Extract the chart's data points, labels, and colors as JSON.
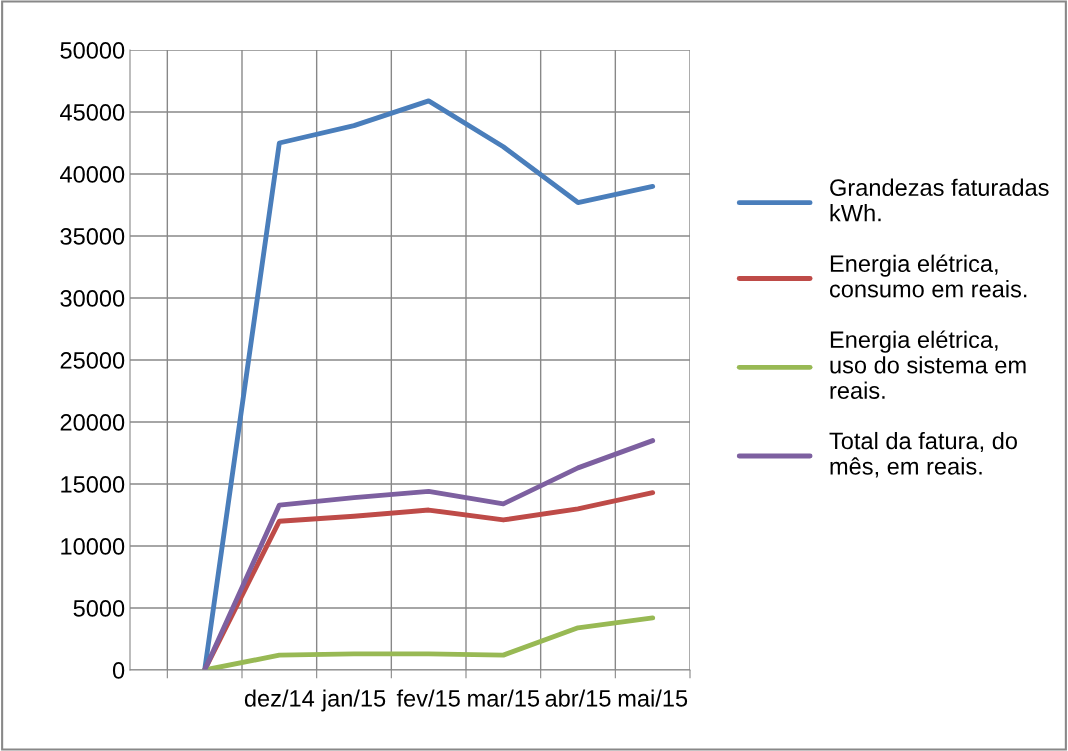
{
  "chart_data": {
    "type": "line",
    "categories": [
      null,
      "dez/14",
      "jan/15",
      "fev/15",
      "mar/15",
      "abr/15",
      "mai/15"
    ],
    "series": [
      {
        "name": "Grandezas faturadas kWh.",
        "color": "#4a7ebb",
        "values": [
          0,
          42500,
          43900,
          45900,
          42200,
          37700,
          39000
        ]
      },
      {
        "name": "Energia elétrica, consumo em reais.",
        "color": "#be4b48",
        "values": [
          0,
          12000,
          12400,
          12900,
          12100,
          13000,
          14300
        ]
      },
      {
        "name": "Energia elétrica, uso do sistema em reais.",
        "color": "#98b954",
        "values": [
          0,
          1200,
          1300,
          1300,
          1200,
          3400,
          4200
        ]
      },
      {
        "name": "Total da fatura, do mês, em reais.",
        "color": "#7d60a0",
        "values": [
          0,
          13300,
          13900,
          14400,
          13400,
          16300,
          18500
        ]
      }
    ],
    "ylim": [
      0,
      50000
    ],
    "yticks": [
      0,
      5000,
      10000,
      15000,
      20000,
      25000,
      30000,
      35000,
      40000,
      45000,
      50000
    ],
    "grid": true,
    "legend": "right",
    "marker": "none",
    "line_style": "solid"
  }
}
